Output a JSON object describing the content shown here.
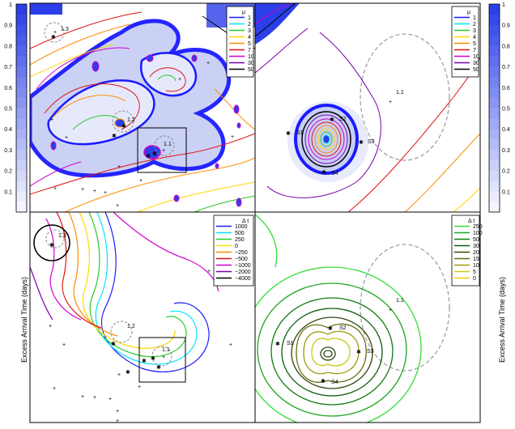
{
  "colorbar": {
    "ticks": [
      "1",
      "0.9",
      "0.8",
      "0.7",
      "0.6",
      "0.5",
      "0.4",
      "0.3",
      "0.2",
      "0.1"
    ],
    "fill": "#2a3fe8"
  },
  "legend_mu": {
    "title": "μ",
    "entries": [
      {
        "label": "1",
        "color": "#1a1aff"
      },
      {
        "label": "2",
        "color": "#00e5ff"
      },
      {
        "label": "3",
        "color": "#27c927"
      },
      {
        "label": "4",
        "color": "#ffd700"
      },
      {
        "label": "5",
        "color": "#ff8c00"
      },
      {
        "label": "7",
        "color": "#e01010"
      },
      {
        "label": "10",
        "color": "#d000d0"
      },
      {
        "label": "30",
        "color": "#7a00b0"
      },
      {
        "label": "50",
        "color": "#000000"
      }
    ]
  },
  "legend_dt_left": {
    "title": "Δ t",
    "entries": [
      {
        "label": "1000",
        "color": "#1a1aff"
      },
      {
        "label": "500",
        "color": "#00e5ff"
      },
      {
        "label": "250",
        "color": "#27c927"
      },
      {
        "label": "0",
        "color": "#ffd700"
      },
      {
        "label": "−250",
        "color": "#ff8c00"
      },
      {
        "label": "−500",
        "color": "#e01010"
      },
      {
        "label": "−1000",
        "color": "#d000d0"
      },
      {
        "label": "−2000",
        "color": "#7a00b0"
      },
      {
        "label": "−4000",
        "color": "#000000"
      }
    ]
  },
  "legend_dt_right": {
    "title": "Δ t",
    "entries": [
      {
        "label": "250",
        "color": "#33dd33"
      },
      {
        "label": "100",
        "color": "#1fa51f"
      },
      {
        "label": "50",
        "color": "#107a10"
      },
      {
        "label": "30",
        "color": "#0b5a0b"
      },
      {
        "label": "20",
        "color": "#2e4a10"
      },
      {
        "label": "15",
        "color": "#6b6b10"
      },
      {
        "label": "10",
        "color": "#9a9a10"
      },
      {
        "label": "5",
        "color": "#c9c910"
      },
      {
        "label": "0",
        "color": "#ffcc00"
      }
    ]
  },
  "image_labels": {
    "a13": "1.3",
    "a12": "1.2",
    "a11": "1.1",
    "s1": "S1",
    "s2": "S2",
    "s3": "S3",
    "s4": "S4"
  },
  "y_axis_title": "Excess Arrival Time (days)"
}
